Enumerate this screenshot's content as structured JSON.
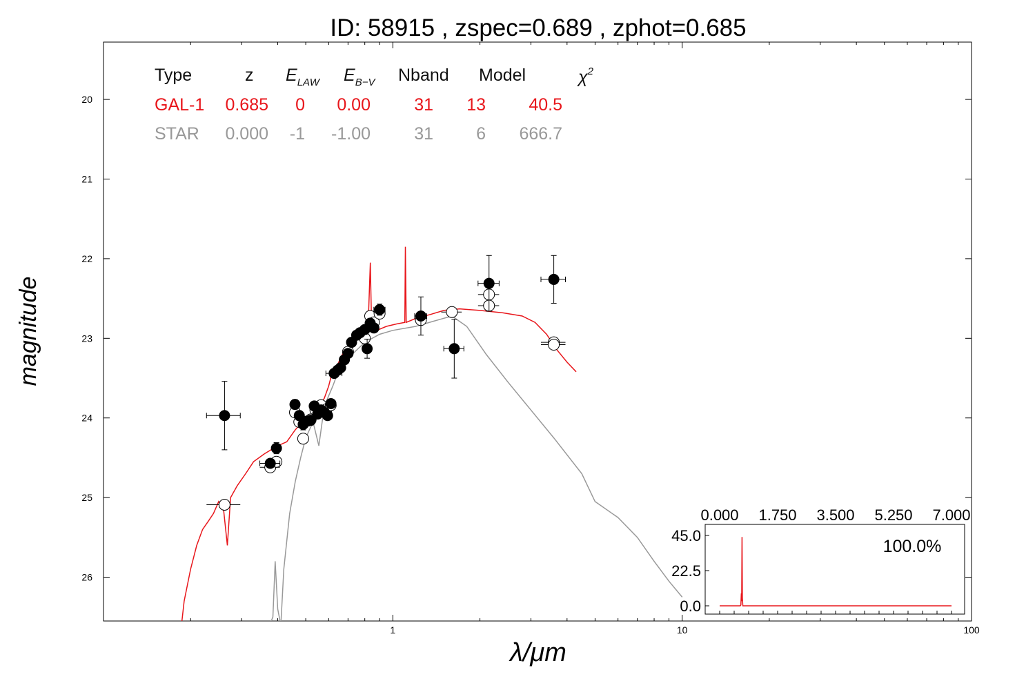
{
  "title": "ID:  58915 , zspec=0.689 , zphot=0.685",
  "colors": {
    "galaxy": "#e8161b",
    "star": "#999999",
    "axis": "#000000"
  },
  "table": {
    "headers": {
      "type": "Type",
      "z": "z",
      "elaw": "E",
      "elaw_sub": "LAW",
      "ebv": "E",
      "ebv_sub": "B−V",
      "nband": "Nband",
      "model": "Model",
      "chi": "χ",
      "chi_sup": "2"
    },
    "rows": [
      {
        "type": "GAL-1",
        "z": "0.685",
        "elaw": "0",
        "ebv": "0.00",
        "nband": "31",
        "model": "13",
        "chi2": "40.5"
      },
      {
        "type": "STAR",
        "z": "0.000",
        "elaw": "-1",
        "ebv": "-1.00",
        "nband": "31",
        "model": "6",
        "chi2": "666.7"
      }
    ]
  },
  "chart_data": [
    {
      "type": "scatter",
      "xlabel": "λ/μm",
      "ylabel": "magnitude",
      "xscale": "log",
      "xlim": [
        0.1,
        100
      ],
      "ylim": [
        26.55,
        19.28
      ],
      "xticks": [
        {
          "v": 1,
          "label": "1"
        },
        {
          "v": 10,
          "label": "10"
        },
        {
          "v": 100,
          "label": "100"
        }
      ],
      "yticks": [
        {
          "v": 20,
          "label": "20"
        },
        {
          "v": 21,
          "label": "21"
        },
        {
          "v": 22,
          "label": "22"
        },
        {
          "v": 23,
          "label": "23"
        },
        {
          "v": 24,
          "label": "24"
        },
        {
          "v": 25,
          "label": "25"
        },
        {
          "v": 26,
          "label": "26"
        }
      ],
      "galaxy_model": [
        [
          0.186,
          26.6
        ],
        [
          0.19,
          26.3
        ],
        [
          0.2,
          25.9
        ],
        [
          0.21,
          25.6
        ],
        [
          0.22,
          25.4
        ],
        [
          0.23,
          25.3
        ],
        [
          0.24,
          25.2
        ],
        [
          0.25,
          25.05
        ],
        [
          0.26,
          25.15
        ],
        [
          0.268,
          25.6
        ],
        [
          0.275,
          25.0
        ],
        [
          0.29,
          24.85
        ],
        [
          0.31,
          24.7
        ],
        [
          0.33,
          24.55
        ],
        [
          0.36,
          24.45
        ],
        [
          0.4,
          24.35
        ],
        [
          0.43,
          24.3
        ],
        [
          0.46,
          24.15
        ],
        [
          0.5,
          24.0
        ],
        [
          0.53,
          23.95
        ],
        [
          0.56,
          23.85
        ],
        [
          0.58,
          23.75
        ],
        [
          0.6,
          23.6
        ],
        [
          0.62,
          23.4
        ],
        [
          0.64,
          23.35
        ],
        [
          0.67,
          23.2
        ],
        [
          0.7,
          23.1
        ],
        [
          0.74,
          23.0
        ],
        [
          0.78,
          22.95
        ],
        [
          0.82,
          22.93
        ],
        [
          0.836,
          22.05
        ],
        [
          0.845,
          22.92
        ],
        [
          0.88,
          22.9
        ],
        [
          0.95,
          22.85
        ],
        [
          1.03,
          22.82
        ],
        [
          1.1,
          22.8
        ],
        [
          1.105,
          21.85
        ],
        [
          1.112,
          22.8
        ],
        [
          1.2,
          22.75
        ],
        [
          1.35,
          22.7
        ],
        [
          1.5,
          22.65
        ],
        [
          1.7,
          22.63
        ],
        [
          2.0,
          22.65
        ],
        [
          2.4,
          22.68
        ],
        [
          2.8,
          22.72
        ],
        [
          3.1,
          22.8
        ],
        [
          3.4,
          22.95
        ],
        [
          3.7,
          23.15
        ],
        [
          4.0,
          23.3
        ],
        [
          4.3,
          23.42
        ]
      ],
      "star_model": [
        [
          0.375,
          26.6
        ],
        [
          0.385,
          26.5
        ],
        [
          0.392,
          25.8
        ],
        [
          0.4,
          26.4
        ],
        [
          0.41,
          26.6
        ],
        [
          0.42,
          25.9
        ],
        [
          0.44,
          25.2
        ],
        [
          0.46,
          24.8
        ],
        [
          0.48,
          24.5
        ],
        [
          0.5,
          24.25
        ],
        [
          0.53,
          24.05
        ],
        [
          0.555,
          24.35
        ],
        [
          0.58,
          23.85
        ],
        [
          0.62,
          23.6
        ],
        [
          0.65,
          23.4
        ],
        [
          0.7,
          23.25
        ],
        [
          0.8,
          23.05
        ],
        [
          0.9,
          22.95
        ],
        [
          1.0,
          22.9
        ],
        [
          1.2,
          22.85
        ],
        [
          1.4,
          22.78
        ],
        [
          1.6,
          22.72
        ],
        [
          1.8,
          22.85
        ],
        [
          2.1,
          23.2
        ],
        [
          2.5,
          23.55
        ],
        [
          3.0,
          23.9
        ],
        [
          3.6,
          24.25
        ],
        [
          4.5,
          24.7
        ],
        [
          5.0,
          25.05
        ],
        [
          6.0,
          25.25
        ],
        [
          7.0,
          25.5
        ],
        [
          8.0,
          25.8
        ],
        [
          9.0,
          26.05
        ],
        [
          10.0,
          26.25
        ]
      ],
      "observed": [
        {
          "x": 0.262,
          "y": 23.97,
          "xerr": 0.035,
          "yerr": 0.43
        },
        {
          "x": 0.377,
          "y": 24.57,
          "xerr": 0.03,
          "yerr": 0.05
        },
        {
          "x": 0.396,
          "y": 24.38,
          "xerr": 0.01,
          "yerr": 0.07
        },
        {
          "x": 0.459,
          "y": 23.83,
          "xerr": 0.015,
          "yerr": 0.06
        },
        {
          "x": 0.475,
          "y": 23.97,
          "xerr": 0.01,
          "yerr": 0.06
        },
        {
          "x": 0.49,
          "y": 24.08,
          "xerr": 0.01,
          "yerr": 0.07
        },
        {
          "x": 0.505,
          "y": 24.04,
          "xerr": 0.01,
          "yerr": 0.06
        },
        {
          "x": 0.52,
          "y": 24.03,
          "xerr": 0.01,
          "yerr": 0.06
        },
        {
          "x": 0.535,
          "y": 23.85,
          "xerr": 0.01,
          "yerr": 0.05
        },
        {
          "x": 0.55,
          "y": 23.95,
          "xerr": 0.01,
          "yerr": 0.05
        },
        {
          "x": 0.565,
          "y": 23.9,
          "xerr": 0.01,
          "yerr": 0.05
        },
        {
          "x": 0.58,
          "y": 23.93,
          "xerr": 0.01,
          "yerr": 0.05
        },
        {
          "x": 0.595,
          "y": 23.97,
          "xerr": 0.01,
          "yerr": 0.05
        },
        {
          "x": 0.611,
          "y": 23.82,
          "xerr": 0.01,
          "yerr": 0.05
        },
        {
          "x": 0.627,
          "y": 23.44,
          "xerr": 0.04,
          "yerr": 0.04
        },
        {
          "x": 0.645,
          "y": 23.4,
          "xerr": 0.01,
          "yerr": 0.04
        },
        {
          "x": 0.66,
          "y": 23.37,
          "xerr": 0.01,
          "yerr": 0.04
        },
        {
          "x": 0.68,
          "y": 23.27,
          "xerr": 0.02,
          "yerr": 0.04
        },
        {
          "x": 0.7,
          "y": 23.19,
          "xerr": 0.02,
          "yerr": 0.04
        },
        {
          "x": 0.72,
          "y": 23.05,
          "xerr": 0.02,
          "yerr": 0.04
        },
        {
          "x": 0.75,
          "y": 22.96,
          "xerr": 0.02,
          "yerr": 0.04
        },
        {
          "x": 0.77,
          "y": 22.93,
          "xerr": 0.02,
          "yerr": 0.04
        },
        {
          "x": 0.8,
          "y": 22.89,
          "xerr": 0.02,
          "yerr": 0.04
        },
        {
          "x": 0.815,
          "y": 23.13,
          "xerr": 0.01,
          "yerr": 0.12
        },
        {
          "x": 0.835,
          "y": 22.81,
          "xerr": 0.02,
          "yerr": 0.04
        },
        {
          "x": 0.86,
          "y": 22.87,
          "xerr": 0.02,
          "yerr": 0.04
        },
        {
          "x": 0.9,
          "y": 22.64,
          "xerr": 0.04,
          "yerr": 0.07
        },
        {
          "x": 1.25,
          "y": 22.72,
          "xerr": 0.06,
          "yerr": 0.24
        },
        {
          "x": 1.63,
          "y": 23.13,
          "xerr": 0.13,
          "yerr": 0.37
        },
        {
          "x": 2.15,
          "y": 22.31,
          "xerr": 0.18,
          "yerr": 0.35
        },
        {
          "x": 3.6,
          "y": 22.26,
          "xerr": 0.35,
          "yerr": 0.3
        }
      ],
      "model_mags": [
        {
          "x": 0.262,
          "y": 25.09,
          "xerr": 0.035
        },
        {
          "x": 0.377,
          "y": 24.62,
          "xerr": 0.03
        },
        {
          "x": 0.396,
          "y": 24.55,
          "xerr": 0.015
        },
        {
          "x": 0.459,
          "y": 23.93,
          "xerr": 0.015
        },
        {
          "x": 0.475,
          "y": 24.05,
          "xerr": 0.01
        },
        {
          "x": 0.49,
          "y": 24.26,
          "xerr": 0.01
        },
        {
          "x": 0.52,
          "y": 24.02,
          "xerr": 0.01
        },
        {
          "x": 0.54,
          "y": 23.9,
          "xerr": 0.01
        },
        {
          "x": 0.565,
          "y": 23.84,
          "xerr": 0.01
        },
        {
          "x": 0.59,
          "y": 23.89,
          "xerr": 0.01
        },
        {
          "x": 0.61,
          "y": 23.84,
          "xerr": 0.01
        },
        {
          "x": 0.7,
          "y": 23.17,
          "xerr": 0.01
        },
        {
          "x": 0.8,
          "y": 23.0,
          "xerr": 0.01
        },
        {
          "x": 0.835,
          "y": 22.72,
          "xerr": 0.02
        },
        {
          "x": 0.86,
          "y": 22.8,
          "xerr": 0.02
        },
        {
          "x": 0.9,
          "y": 22.69,
          "xerr": 0.04
        },
        {
          "x": 1.25,
          "y": 22.77,
          "xerr": 0.06
        },
        {
          "x": 1.6,
          "y": 22.67,
          "xerr": 0.13
        },
        {
          "x": 2.15,
          "y": 22.45,
          "xerr": 0.18
        },
        {
          "x": 2.15,
          "y": 22.59,
          "xerr": 0.18
        },
        {
          "x": 3.6,
          "y": 23.05,
          "xerr": 0.35
        },
        {
          "x": 3.6,
          "y": 23.08,
          "xerr": 0.35
        }
      ]
    },
    {
      "type": "line",
      "xlim": [
        0,
        7
      ],
      "ylim": [
        -2,
        52
      ],
      "xticks": [
        {
          "v": 0,
          "label": "0.000"
        },
        {
          "v": 1.75,
          "label": "1.750"
        },
        {
          "v": 3.5,
          "label": "3.500"
        },
        {
          "v": 5.25,
          "label": "5.250"
        },
        {
          "v": 7,
          "label": "7.000"
        }
      ],
      "yticks": [
        {
          "v": 0,
          "label": "0.0"
        },
        {
          "v": 22.5,
          "label": "22.5"
        },
        {
          "v": 45,
          "label": "45.0"
        }
      ],
      "annotation": "100.0%",
      "series_points": [
        [
          0.0,
          0
        ],
        [
          0.62,
          0
        ],
        [
          0.64,
          0.5
        ],
        [
          0.655,
          8
        ],
        [
          0.665,
          3
        ],
        [
          0.675,
          44
        ],
        [
          0.685,
          5
        ],
        [
          0.7,
          0
        ],
        [
          7.0,
          0
        ]
      ]
    }
  ]
}
